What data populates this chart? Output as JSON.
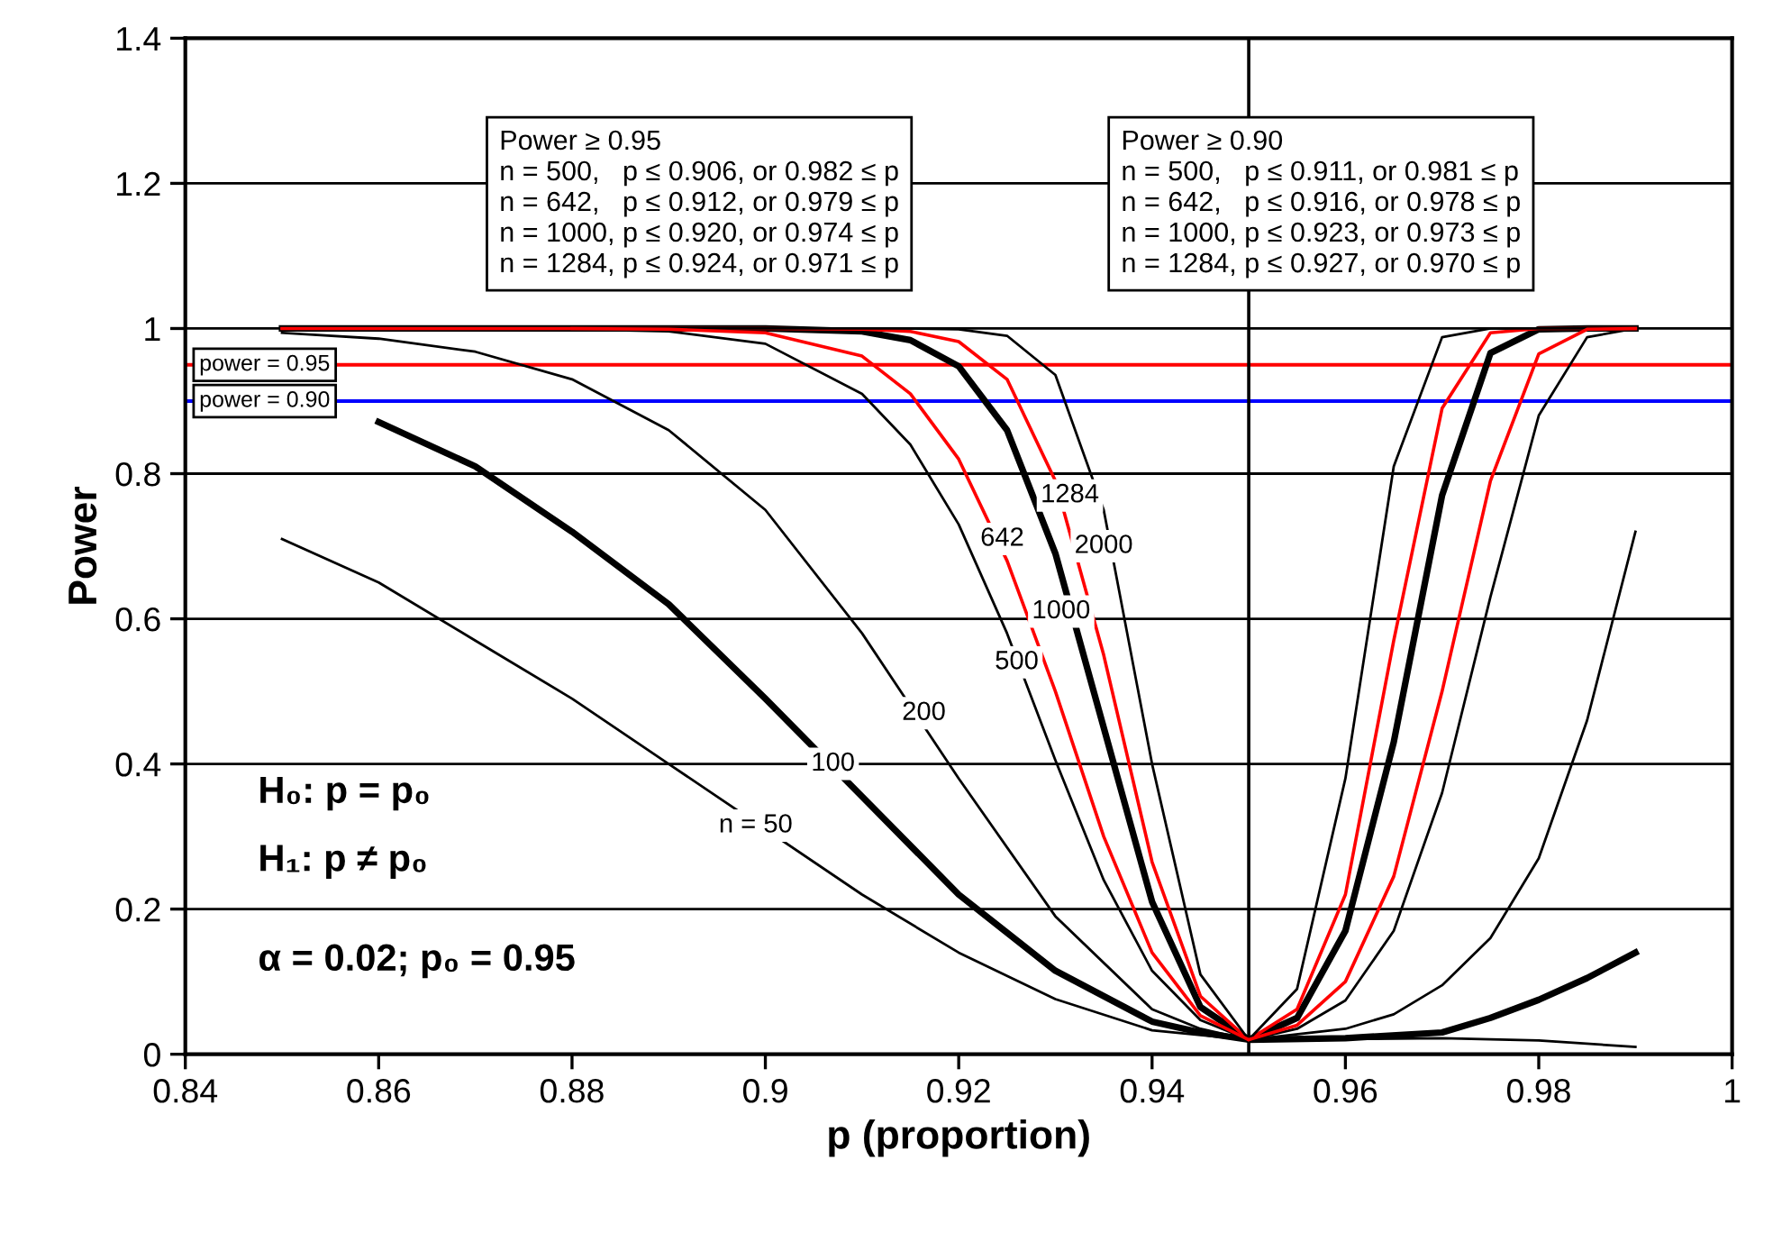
{
  "chart_data": {
    "type": "line",
    "xlabel": "p (proportion)",
    "ylabel": "Power",
    "xlim": [
      0.84,
      1
    ],
    "xticks": [
      0.84,
      0.86,
      0.88,
      0.9,
      0.92,
      0.94,
      0.96,
      0.98,
      1
    ],
    "ylim": [
      0,
      1.4
    ],
    "yticks": [
      0,
      0.2,
      0.4,
      0.6,
      0.8,
      1,
      1.2,
      1.4
    ],
    "grid": "y",
    "marker": "none",
    "line_style": "solid",
    "x": [
      0.85,
      0.86,
      0.87,
      0.88,
      0.89,
      0.9,
      0.91,
      0.915,
      0.92,
      0.925,
      0.93,
      0.935,
      0.94,
      0.945,
      0.95,
      0.955,
      0.96,
      0.965,
      0.97,
      0.975,
      0.98,
      0.985,
      0.99
    ],
    "series": [
      {
        "color": "#000000",
        "x": [
          0.85,
          0.86,
          0.87,
          0.88,
          0.89,
          0.91,
          0.92,
          0.93,
          0.94,
          0.95,
          0.96,
          0.97,
          0.98,
          0.99
        ],
        "values": [
          0.71,
          0.65,
          0.57,
          0.49,
          0.4,
          0.22,
          0.14,
          0.076,
          0.033,
          0.02,
          0.021,
          0.022,
          0.019,
          0.01
        ]
      },
      {
        "color": "#000000",
        "x": [
          0.86,
          0.87,
          0.88,
          0.89,
          0.9,
          0.91,
          0.92,
          0.93,
          0.94,
          0.945,
          0.95,
          0.96,
          0.97,
          0.975,
          0.98,
          0.985,
          0.99
        ],
        "values": [
          0.871,
          0.81,
          0.72,
          0.62,
          0.49,
          0.355,
          0.22,
          0.115,
          0.045,
          0.03,
          0.02,
          0.022,
          0.03,
          0.05,
          0.075,
          0.105,
          0.14
        ]
      },
      {
        "color": "#000000",
        "x": [
          0.85,
          0.86,
          0.87,
          0.88,
          0.89,
          0.9,
          0.91,
          0.92,
          0.93,
          0.94,
          0.945,
          0.95,
          0.96,
          0.965,
          0.97,
          0.975,
          0.98,
          0.985,
          0.99
        ],
        "values": [
          0.994,
          0.986,
          0.968,
          0.93,
          0.86,
          0.75,
          0.58,
          0.38,
          0.19,
          0.062,
          0.035,
          0.02,
          0.035,
          0.055,
          0.095,
          0.16,
          0.27,
          0.46,
          0.72
        ]
      },
      {
        "color": "#000000",
        "values": [
          1,
          1,
          1,
          0.999,
          0.996,
          0.979,
          0.91,
          0.84,
          0.73,
          0.58,
          0.405,
          0.24,
          0.115,
          0.047,
          0.02,
          0.035,
          0.074,
          0.17,
          0.36,
          0.63,
          0.88,
          0.988,
          1
        ]
      },
      {
        "color": "#ff0000",
        "values": [
          1,
          1,
          1,
          1,
          0.999,
          0.994,
          0.962,
          0.91,
          0.82,
          0.68,
          0.5,
          0.3,
          0.14,
          0.053,
          0.02,
          0.04,
          0.1,
          0.245,
          0.5,
          0.79,
          0.965,
          0.999,
          1
        ]
      },
      {
        "color": "#000000",
        "values": [
          1,
          1,
          1,
          1,
          1,
          1,
          0.996,
          0.984,
          0.948,
          0.86,
          0.69,
          0.45,
          0.21,
          0.065,
          0.02,
          0.05,
          0.17,
          0.43,
          0.77,
          0.966,
          0.999,
          1,
          1
        ]
      },
      {
        "color": "#ff0000",
        "values": [
          null,
          null,
          null,
          1,
          1,
          1,
          0.999,
          0.996,
          0.982,
          0.93,
          0.79,
          0.55,
          0.265,
          0.08,
          0.02,
          0.062,
          0.22,
          0.57,
          0.89,
          0.994,
          1,
          1,
          1
        ]
      },
      {
        "color": "#000000",
        "values": [
          1,
          1,
          1,
          1,
          1,
          1,
          1,
          1,
          0.999,
          0.99,
          0.936,
          0.75,
          0.4,
          0.11,
          0.02,
          0.09,
          0.38,
          0.81,
          0.988,
          1,
          1,
          1,
          1
        ]
      }
    ],
    "ref_lines": [
      {
        "axis": "y",
        "value": 0.95,
        "label": "power = 0.95",
        "color": "#ff0000",
        "line_style": "solid"
      },
      {
        "axis": "y",
        "value": 0.9,
        "label": "power = 0.90",
        "color": "#0000ff",
        "line_style": "solid"
      },
      {
        "axis": "x",
        "value": 0.95,
        "color": "#000000",
        "line_style": "solid"
      }
    ],
    "annotations": [
      "Power ≥ 0.95\nn = 500,   p ≤ 0.906, or 0.982 ≤ p\nn = 642,   p ≤ 0.912, or 0.979 ≤ p\nn = 1000, p ≤ 0.920, or 0.974 ≤ p\nn = 1284, p ≤ 0.924, or 0.971 ≤ p",
      "Power ≥ 0.90\nn = 500,   p ≤ 0.911, or 0.981 ≤ p\nn = 642,   p ≤ 0.916, or 0.978 ≤ p\nn = 1000, p ≤ 0.923, or 0.973 ≤ p\nn = 1284, p ≤ 0.927, or 0.970 ≤ p",
      "H₀: p = p₀",
      "H₁: p ≠ p₀",
      "α = 0.02; p₀ = 0.95",
      {
        "text": "n = 50",
        "x": 0.899,
        "y": 0.315
      },
      {
        "text": "100",
        "x": 0.907,
        "y": 0.4
      },
      {
        "text": "200",
        "x": 0.9164,
        "y": 0.47
      },
      {
        "text": "500",
        "x": 0.926,
        "y": 0.54
      },
      {
        "text": "642",
        "x": 0.9245,
        "y": 0.71
      },
      {
        "text": "1000",
        "x": 0.9306,
        "y": 0.61
      },
      {
        "text": "1284",
        "x": 0.9315,
        "y": 0.77
      },
      {
        "text": "2000",
        "x": 0.935,
        "y": 0.7
      }
    ]
  }
}
